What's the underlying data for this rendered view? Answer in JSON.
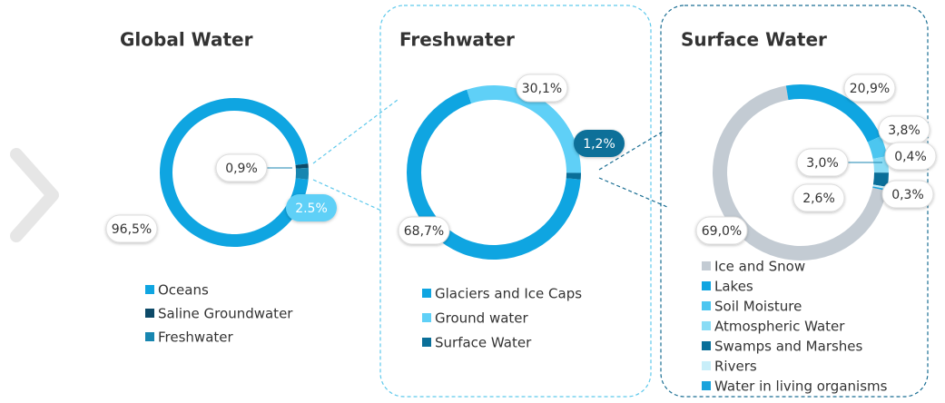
{
  "chart_data": [
    {
      "type": "pie",
      "donut": true,
      "title": "Global Water",
      "categories": [
        "Oceans",
        "Saline Groundwater",
        "Freshwater"
      ],
      "values": [
        96.5,
        0.9,
        2.5
      ],
      "value_labels": [
        "96,5%",
        "0,9%",
        "2.5%"
      ],
      "colors": [
        "#0fa5e1",
        "#0d4a68",
        "#1786b0"
      ]
    },
    {
      "type": "pie",
      "donut": true,
      "title": "Freshwater",
      "categories": [
        "Glaciers and Ice Caps",
        "Ground water",
        "Surface Water"
      ],
      "values": [
        68.7,
        30.1,
        1.2
      ],
      "value_labels": [
        "68,7%",
        "30,1%",
        "1,2%"
      ],
      "colors": [
        "#0fa5e1",
        "#5fd0f7",
        "#0a6f99"
      ]
    },
    {
      "type": "pie",
      "donut": true,
      "title": "Surface Water",
      "categories": [
        "Ice and Snow",
        "Lakes",
        "Soil Moisture",
        "Atmospheric Water",
        "Swamps and Marshes",
        "Rivers",
        "Water in living organisms"
      ],
      "values": [
        69.0,
        20.9,
        3.8,
        3.0,
        2.6,
        0.4,
        0.3
      ],
      "value_labels": [
        "69,0%",
        "20,9%",
        "3,8%",
        "3,0%",
        "2,6%",
        "0,4%",
        "0,3%"
      ],
      "colors": [
        "#c3cbd3",
        "#0fa5e1",
        "#4cc6f0",
        "#8adcf5",
        "#0a6f99",
        "#c8eef9",
        "#1aa3dc"
      ]
    }
  ]
}
